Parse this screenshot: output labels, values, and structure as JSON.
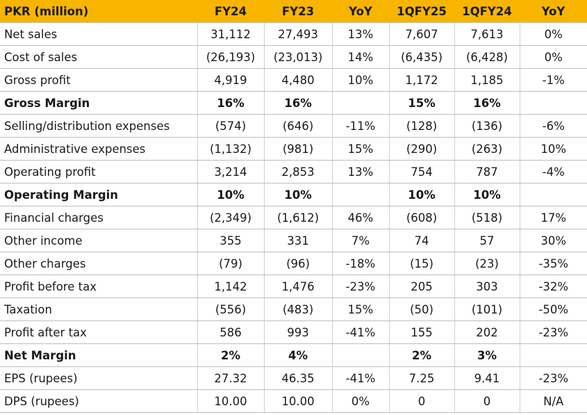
{
  "header": [
    "PKR (million)",
    "FY24",
    "FY23",
    "YoY",
    "1QFY25",
    "1QFY24",
    "YoY"
  ],
  "rows": [
    {
      "label": "Net sales",
      "bold": false,
      "values": [
        "31,112",
        "27,493",
        "13%",
        "7,607",
        "7,613",
        "0%"
      ]
    },
    {
      "label": "Cost of sales",
      "bold": false,
      "values": [
        "(26,193)",
        "(23,013)",
        "14%",
        "(6,435)",
        "(6,428)",
        "0%"
      ]
    },
    {
      "label": "Gross profit",
      "bold": false,
      "values": [
        "4,919",
        "4,480",
        "10%",
        "1,172",
        "1,185",
        "-1%"
      ]
    },
    {
      "label": "Gross Margin",
      "bold": true,
      "values": [
        "16%",
        "16%",
        "",
        "15%",
        "16%",
        ""
      ]
    },
    {
      "label": "Selling/distribution expenses",
      "bold": false,
      "values": [
        "(574)",
        "(646)",
        "-11%",
        "(128)",
        "(136)",
        "-6%"
      ]
    },
    {
      "label": "Administrative expenses",
      "bold": false,
      "values": [
        "(1,132)",
        "(981)",
        "15%",
        "(290)",
        "(263)",
        "10%"
      ]
    },
    {
      "label": "Operating profit",
      "bold": false,
      "values": [
        "3,214",
        "2,853",
        "13%",
        "754",
        "787",
        "-4%"
      ]
    },
    {
      "label": "Operating Margin",
      "bold": true,
      "values": [
        "10%",
        "10%",
        "",
        "10%",
        "10%",
        ""
      ]
    },
    {
      "label": "Financial charges",
      "bold": false,
      "values": [
        "(2,349)",
        "(1,612)",
        "46%",
        "(608)",
        "(518)",
        "17%"
      ]
    },
    {
      "label": "Other income",
      "bold": false,
      "values": [
        "355",
        "331",
        "7%",
        "74",
        "57",
        "30%"
      ]
    },
    {
      "label": "Other charges",
      "bold": false,
      "values": [
        "(79)",
        "(96)",
        "-18%",
        "(15)",
        "(23)",
        "-35%"
      ]
    },
    {
      "label": "Profit before tax",
      "bold": false,
      "values": [
        "1,142",
        "1,476",
        "-23%",
        "205",
        "303",
        "-32%"
      ]
    },
    {
      "label": "Taxation",
      "bold": false,
      "values": [
        "(556)",
        "(483)",
        "15%",
        "(50)",
        "(101)",
        "-50%"
      ]
    },
    {
      "label": "Profit after tax",
      "bold": false,
      "values": [
        "586",
        "993",
        "-41%",
        "155",
        "202",
        "-23%"
      ]
    },
    {
      "label": "Net Margin",
      "bold": true,
      "values": [
        "2%",
        "4%",
        "",
        "2%",
        "3%",
        ""
      ]
    },
    {
      "label": "EPS (rupees)",
      "bold": false,
      "values": [
        "27.32",
        "46.35",
        "-41%",
        "7.25",
        "9.41",
        "-23%"
      ]
    },
    {
      "label": "DPS (rupees)",
      "bold": false,
      "values": [
        "10.00",
        "10.00",
        "0%",
        "0",
        "0",
        "N/A"
      ]
    }
  ],
  "colors": {
    "header_bg": "#f7b500",
    "grid": "#bdbdbd"
  }
}
